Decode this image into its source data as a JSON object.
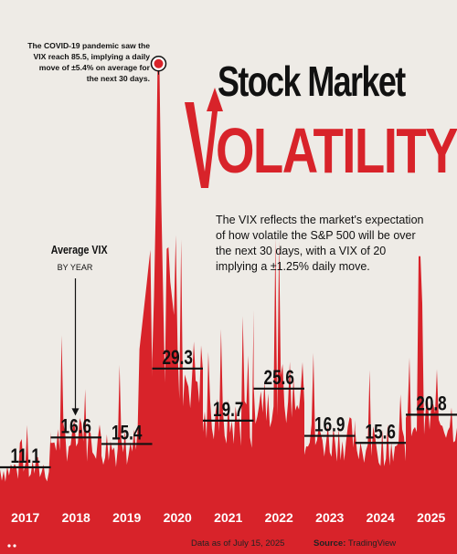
{
  "title": {
    "line1": "Stock Market",
    "line2": "OLATILITY",
    "v_letter": "V"
  },
  "description": "The VIX reflects the market's expectation of how volatile the S&P 500 will be over the next 30 days, with a VIX of 20 implying a ±1.25% daily move.",
  "annotation": "The COVID-19 pandemic saw the VIX reach 85.5, implying a daily move of ±5.4% on average for the next 30 days.",
  "legend": {
    "average_title": "Average VIX",
    "average_sub": "BY YEAR"
  },
  "footer": {
    "note": "Data as of July 15, 2025",
    "source_label": "Source:",
    "source_value": "TradingView"
  },
  "colors": {
    "background": "#eeebe6",
    "accent": "#d8232a",
    "text": "#111111"
  },
  "chart_data": {
    "type": "area",
    "series_description": "Daily VIX level 2017 to July 2025 with yearly average markers",
    "x": [
      "2017",
      "2018",
      "2019",
      "2020",
      "2021",
      "2022",
      "2023",
      "2024",
      "2025"
    ],
    "yearly_average": [
      11.1,
      16.6,
      15.4,
      29.3,
      19.7,
      25.6,
      16.9,
      15.6,
      20.8
    ],
    "yearly_average_labels": [
      "11.1",
      "16.6",
      "15.4",
      "29.3",
      "19.7",
      "25.6",
      "16.9",
      "15.6",
      "20.8"
    ],
    "peak": {
      "x": "2020",
      "value": 85.5
    },
    "ylim": [
      0,
      90
    ],
    "grid": false,
    "legend": "none"
  }
}
